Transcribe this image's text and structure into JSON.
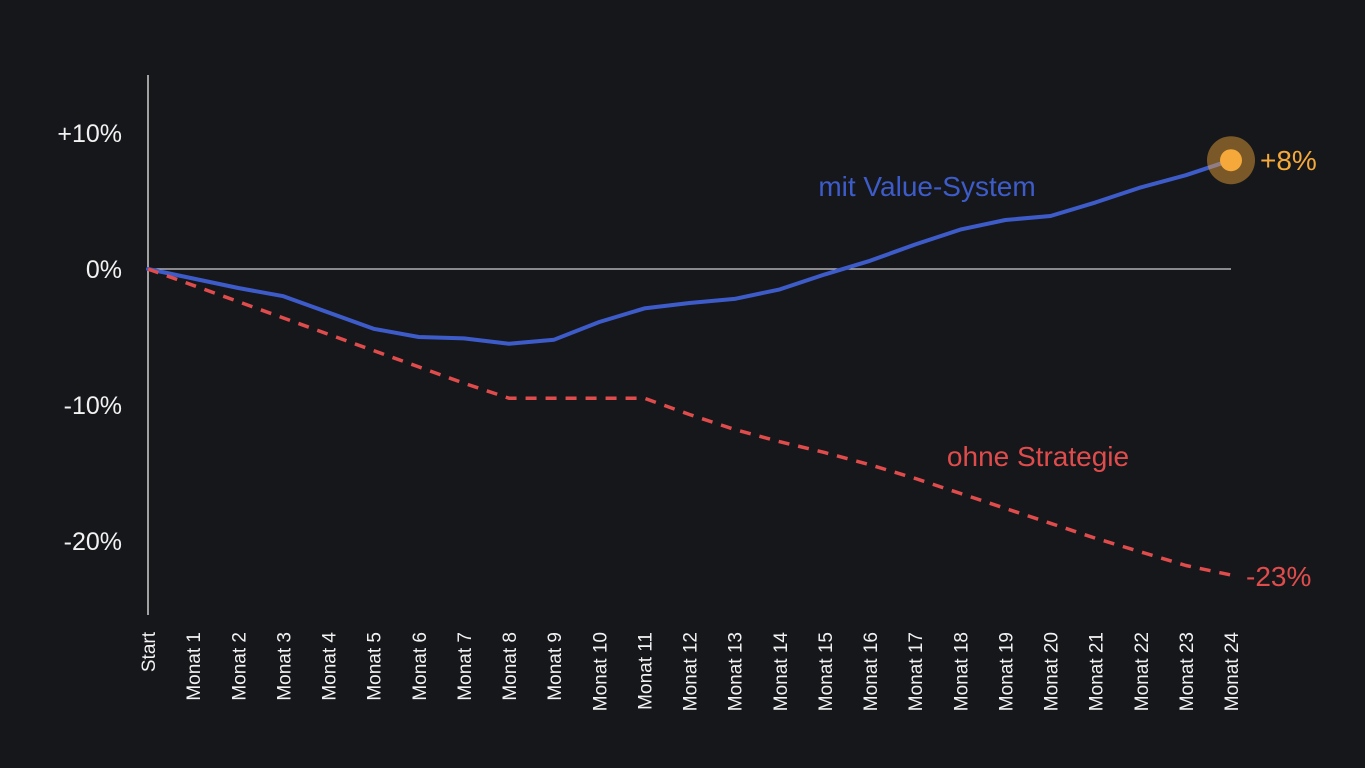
{
  "chart_data": {
    "type": "line",
    "x": [
      "Start",
      "Monat 1",
      "Monat 2",
      "Monat 3",
      "Monat 4",
      "Monat 5",
      "Monat 6",
      "Monat 7",
      "Monat 8",
      "Monat 9",
      "Monat 10",
      "Monat 11",
      "Monat 12",
      "Monat 13",
      "Monat 14",
      "Monat 15",
      "Monat 16",
      "Monat 17",
      "Monat 18",
      "Monat 19",
      "Monat 20",
      "Monat 21",
      "Monat 22",
      "Monat 23",
      "Monat 24"
    ],
    "yticks": [
      {
        "value": 10,
        "label": "+10%"
      },
      {
        "value": 0,
        "label": "0%"
      },
      {
        "value": -10,
        "label": "-10%"
      },
      {
        "value": -20,
        "label": "-20%"
      }
    ],
    "ylim": [
      -25,
      14
    ],
    "series": [
      {
        "name": "mit Value-System",
        "color": "#3d5cc9",
        "style": "solid",
        "values": [
          0,
          -0.7,
          -1.4,
          -2,
          -3.2,
          -4.4,
          -5,
          -5.1,
          -5.5,
          -5.2,
          -3.9,
          -2.9,
          -2.5,
          -2.2,
          -1.5,
          -0.4,
          0.6,
          1.8,
          2.9,
          3.6,
          3.9,
          4.9,
          6,
          6.9,
          8
        ],
        "end_label": "+8%",
        "end_label_color": "#f5a93a"
      },
      {
        "name": "ohne Strategie",
        "color": "#e04c4c",
        "style": "dashed",
        "values": [
          0,
          -1.2,
          -2.4,
          -3.6,
          -4.8,
          -6,
          -7.2,
          -8.4,
          -9.5,
          -9.5,
          -9.5,
          -9.5,
          -10.7,
          -11.8,
          -12.7,
          -13.5,
          -14.4,
          -15.4,
          -16.5,
          -17.6,
          -18.7,
          -19.8,
          -20.8,
          -21.8,
          -22.5
        ],
        "end_label": "-23%",
        "end_label_color": "#e04c4c"
      }
    ],
    "highlight_marker_color": "#f5a93a",
    "zero_line": true,
    "grid": false,
    "legend": "inline labels"
  }
}
